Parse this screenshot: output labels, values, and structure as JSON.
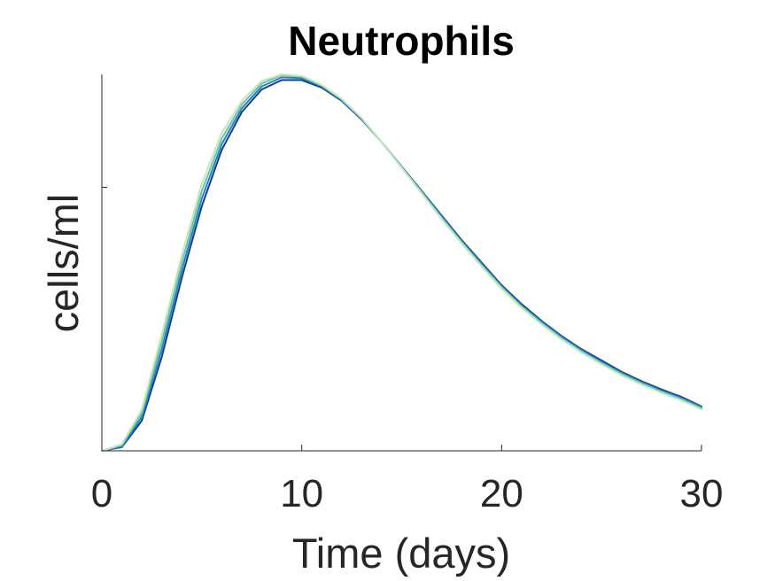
{
  "chart_data": {
    "type": "line",
    "title": "Neutrophils",
    "xlabel": "Time (days)",
    "ylabel": "cells/ml",
    "xlim": [
      0,
      30
    ],
    "ylim": [
      0,
      1.0
    ],
    "xticks": [
      "0",
      "10",
      "20",
      "30"
    ],
    "yticks_shown_without_labels": [
      0.7
    ],
    "grid": false,
    "legend": "none",
    "colormap": [
      "#1a3a8a",
      "#1f5fa8",
      "#2b83ba",
      "#3ea6c0",
      "#63c3b8",
      "#93d8b0",
      "#c0e9b7"
    ],
    "series": [
      {
        "color": "#1a3a8a",
        "x": [
          0,
          1,
          2,
          3,
          4,
          5,
          6,
          7,
          8,
          9,
          10,
          11,
          12,
          13,
          14,
          15,
          16,
          17,
          18,
          19,
          20,
          21,
          22,
          23,
          24,
          25,
          26,
          27,
          28,
          29,
          30
        ],
        "y": [
          0,
          0.01,
          0.08,
          0.25,
          0.46,
          0.65,
          0.8,
          0.9,
          0.96,
          0.985,
          0.985,
          0.965,
          0.93,
          0.88,
          0.82,
          0.755,
          0.69,
          0.625,
          0.56,
          0.5,
          0.44,
          0.39,
          0.345,
          0.305,
          0.27,
          0.24,
          0.21,
          0.185,
          0.163,
          0.143,
          0.118
        ]
      },
      {
        "color": "#2b83ba",
        "x": [
          0,
          1,
          2,
          3,
          4,
          5,
          6,
          7,
          8,
          9,
          10,
          11,
          12,
          13,
          14,
          15,
          16,
          17,
          18,
          19,
          20,
          21,
          22,
          23,
          24,
          25,
          26,
          27,
          28,
          29,
          30
        ],
        "y": [
          0,
          0.012,
          0.09,
          0.27,
          0.48,
          0.67,
          0.815,
          0.91,
          0.968,
          0.992,
          0.99,
          0.968,
          0.932,
          0.882,
          0.82,
          0.754,
          0.688,
          0.622,
          0.557,
          0.496,
          0.437,
          0.386,
          0.342,
          0.302,
          0.267,
          0.236,
          0.207,
          0.182,
          0.16,
          0.14,
          0.116
        ]
      },
      {
        "color": "#63c3b8",
        "x": [
          0,
          1,
          2,
          3,
          4,
          5,
          6,
          7,
          8,
          9,
          10,
          11,
          12,
          13,
          14,
          15,
          16,
          17,
          18,
          19,
          20,
          21,
          22,
          23,
          24,
          25,
          26,
          27,
          28,
          29,
          30
        ],
        "y": [
          0,
          0.015,
          0.1,
          0.29,
          0.5,
          0.69,
          0.83,
          0.92,
          0.976,
          0.998,
          0.994,
          0.971,
          0.934,
          0.883,
          0.82,
          0.753,
          0.686,
          0.619,
          0.554,
          0.493,
          0.434,
          0.383,
          0.339,
          0.299,
          0.264,
          0.233,
          0.204,
          0.179,
          0.157,
          0.137,
          0.113
        ]
      },
      {
        "color": "#c0e9b7",
        "x": [
          0,
          1,
          2,
          3,
          4,
          5,
          6,
          7,
          8,
          9,
          10,
          11,
          12,
          13,
          14,
          15,
          16,
          17,
          18,
          19,
          20,
          21,
          22,
          23,
          24,
          25,
          26,
          27,
          28,
          29,
          30
        ],
        "y": [
          0,
          0.018,
          0.11,
          0.31,
          0.52,
          0.71,
          0.845,
          0.93,
          0.983,
          1.0,
          0.996,
          0.972,
          0.935,
          0.884,
          0.82,
          0.752,
          0.684,
          0.616,
          0.551,
          0.49,
          0.431,
          0.38,
          0.336,
          0.296,
          0.261,
          0.23,
          0.201,
          0.176,
          0.154,
          0.134,
          0.11
        ]
      }
    ]
  }
}
